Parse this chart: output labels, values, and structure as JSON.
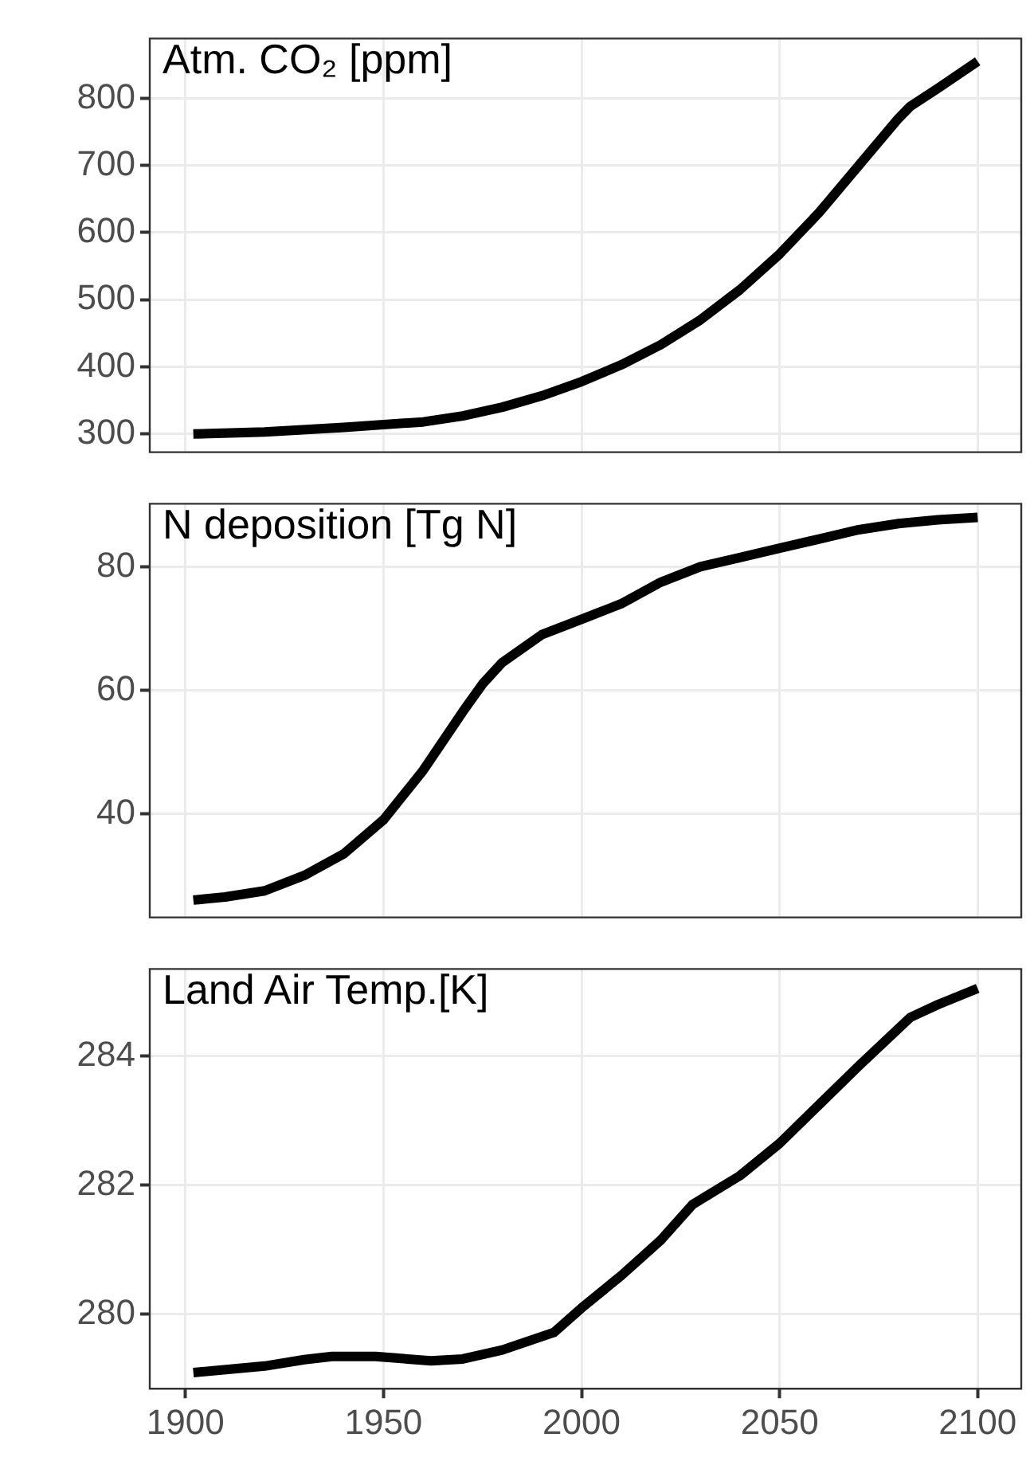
{
  "chart_data": [
    {
      "type": "line",
      "title": "Atm. CO₂ [ppm]",
      "color": "#000000",
      "grid": true,
      "tick_labels": "y",
      "xlim": [
        1891,
        2111
      ],
      "xticks": [
        1900,
        1950,
        2000,
        2050,
        2100
      ],
      "ylim": [
        273,
        889
      ],
      "yticks": [
        300,
        400,
        500,
        600,
        700,
        800
      ],
      "x": [
        1902,
        1920,
        1940,
        1960,
        1970,
        1980,
        1990,
        2000,
        2010,
        2020,
        2030,
        2040,
        2050,
        2060,
        2070,
        2080,
        2083,
        2090,
        2100
      ],
      "values": [
        300,
        303,
        310,
        318,
        327,
        340,
        357,
        378,
        403,
        433,
        470,
        515,
        568,
        630,
        700,
        770,
        788,
        815,
        855
      ]
    },
    {
      "type": "line",
      "title": "N deposition [Tg N]",
      "color": "#000000",
      "grid": true,
      "tick_labels": "y",
      "xlim": [
        1891,
        2111
      ],
      "xticks": [
        1900,
        1950,
        2000,
        2050,
        2100
      ],
      "ylim": [
        23.2,
        90.2
      ],
      "yticks": [
        40,
        60,
        80
      ],
      "x": [
        1902,
        1910,
        1920,
        1930,
        1940,
        1950,
        1960,
        1970,
        1975,
        1980,
        1990,
        2000,
        2010,
        2020,
        2030,
        2040,
        2050,
        2060,
        2070,
        2080,
        2090,
        2100
      ],
      "values": [
        26,
        26.5,
        27.5,
        30,
        33.5,
        39,
        47,
        56.5,
        61,
        64.5,
        69,
        71.5,
        74,
        77.5,
        80,
        81.5,
        83,
        84.5,
        86,
        87,
        87.6,
        88
      ]
    },
    {
      "type": "line",
      "title": "Land Air Temp.[K]",
      "color": "#000000",
      "grid": true,
      "xlim": [
        1891,
        2111
      ],
      "xticks": [
        1900,
        1950,
        2000,
        2050,
        2100
      ],
      "ylim": [
        278.85,
        285.35
      ],
      "yticks": [
        280,
        282,
        284
      ],
      "x": [
        1902,
        1920,
        1930,
        1937,
        1948,
        1962,
        1970,
        1980,
        1993,
        2000,
        2010,
        2020,
        2028,
        2040,
        2050,
        2060,
        2070,
        2083,
        2090,
        2100
      ],
      "values": [
        279.1,
        279.2,
        279.3,
        279.35,
        279.35,
        279.28,
        279.31,
        279.45,
        279.72,
        280.1,
        280.6,
        281.15,
        281.7,
        282.15,
        282.65,
        283.25,
        283.85,
        284.6,
        284.8,
        285.05
      ]
    }
  ]
}
